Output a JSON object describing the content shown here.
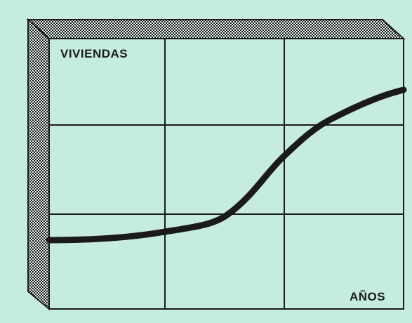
{
  "y_label": "VIVIENDAS",
  "x_label": "AÑOS"
}
